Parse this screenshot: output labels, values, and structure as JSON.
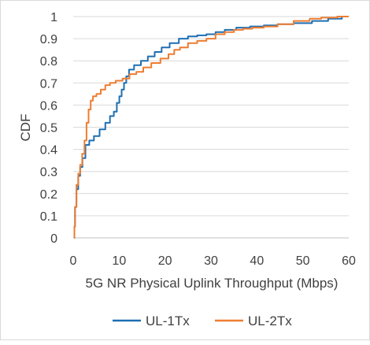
{
  "chart_data": {
    "type": "line",
    "title": "",
    "xlabel": "5G NR Physical Uplink Throughput (Mbps)",
    "ylabel": "CDF",
    "xlim": [
      0,
      60
    ],
    "ylim": [
      0,
      1
    ],
    "x_ticks": [
      "0",
      "10",
      "20",
      "30",
      "40",
      "50",
      "60"
    ],
    "y_ticks": [
      "0",
      "0.1",
      "0.2",
      "0.3",
      "0.4",
      "0.5",
      "0.6",
      "0.7",
      "0.8",
      "0.9",
      "1"
    ],
    "grid": "horizontal",
    "legend": "bottom",
    "series": [
      {
        "name": "UL-1Tx",
        "color": "#1f6fb2",
        "points": [
          [
            0.2,
            0.0
          ],
          [
            0.3,
            0.05
          ],
          [
            0.5,
            0.14
          ],
          [
            0.9,
            0.22
          ],
          [
            1.3,
            0.28
          ],
          [
            1.7,
            0.32
          ],
          [
            2.3,
            0.36
          ],
          [
            3.0,
            0.42
          ],
          [
            4.0,
            0.44
          ],
          [
            5.0,
            0.46
          ],
          [
            6.5,
            0.49
          ],
          [
            7.5,
            0.52
          ],
          [
            8.5,
            0.55
          ],
          [
            9.2,
            0.57
          ],
          [
            9.8,
            0.61
          ],
          [
            10.3,
            0.64
          ],
          [
            10.8,
            0.67
          ],
          [
            11.3,
            0.7
          ],
          [
            11.8,
            0.73
          ],
          [
            12.5,
            0.76
          ],
          [
            14.0,
            0.78
          ],
          [
            15.5,
            0.8
          ],
          [
            17.0,
            0.82
          ],
          [
            18.5,
            0.84
          ],
          [
            20.0,
            0.86
          ],
          [
            22.0,
            0.88
          ],
          [
            24.0,
            0.9
          ],
          [
            26.0,
            0.91
          ],
          [
            28.0,
            0.915
          ],
          [
            30.0,
            0.92
          ],
          [
            32.0,
            0.93
          ],
          [
            34.0,
            0.94
          ],
          [
            37.0,
            0.95
          ],
          [
            40.0,
            0.955
          ],
          [
            43.0,
            0.96
          ],
          [
            46.0,
            0.965
          ],
          [
            50.0,
            0.97
          ],
          [
            54.0,
            0.98
          ],
          [
            57.0,
            0.99
          ],
          [
            60.0,
            1.0
          ]
        ]
      },
      {
        "name": "UL-2Tx",
        "color": "#ed7d31",
        "points": [
          [
            0.2,
            0.0
          ],
          [
            0.3,
            0.05
          ],
          [
            0.5,
            0.14
          ],
          [
            0.9,
            0.24
          ],
          [
            1.3,
            0.29
          ],
          [
            1.7,
            0.33
          ],
          [
            2.2,
            0.38
          ],
          [
            2.7,
            0.44
          ],
          [
            3.1,
            0.52
          ],
          [
            3.6,
            0.58
          ],
          [
            4.0,
            0.62
          ],
          [
            4.6,
            0.64
          ],
          [
            5.5,
            0.65
          ],
          [
            6.5,
            0.67
          ],
          [
            7.5,
            0.69
          ],
          [
            8.5,
            0.7
          ],
          [
            10.0,
            0.71
          ],
          [
            11.5,
            0.72
          ],
          [
            13.0,
            0.74
          ],
          [
            14.5,
            0.75
          ],
          [
            16.0,
            0.77
          ],
          [
            18.0,
            0.79
          ],
          [
            20.0,
            0.81
          ],
          [
            21.5,
            0.83
          ],
          [
            22.5,
            0.85
          ],
          [
            24.0,
            0.86
          ],
          [
            26.0,
            0.88
          ],
          [
            28.0,
            0.89
          ],
          [
            30.0,
            0.9
          ],
          [
            32.0,
            0.92
          ],
          [
            34.0,
            0.93
          ],
          [
            36.0,
            0.94
          ],
          [
            38.0,
            0.945
          ],
          [
            40.0,
            0.95
          ],
          [
            43.0,
            0.955
          ],
          [
            46.0,
            0.965
          ],
          [
            50.0,
            0.98
          ],
          [
            53.0,
            0.99
          ],
          [
            55.0,
            0.995
          ],
          [
            60.0,
            1.0
          ]
        ]
      }
    ]
  }
}
